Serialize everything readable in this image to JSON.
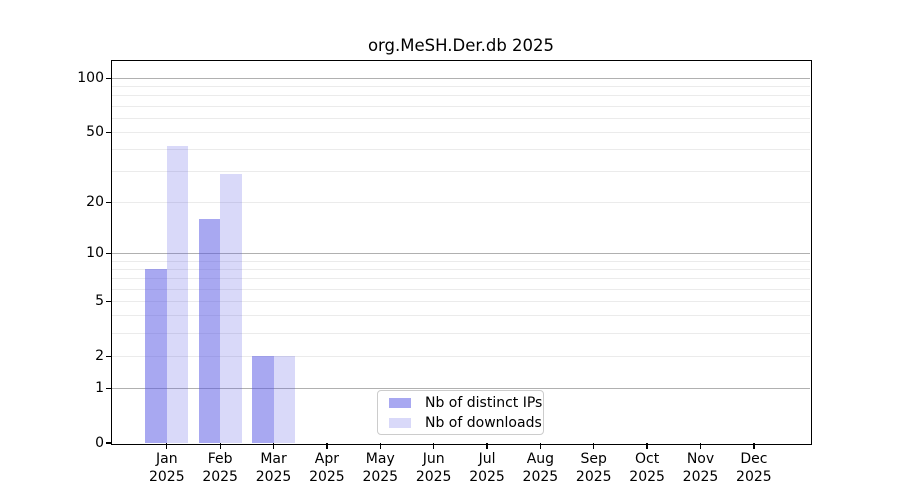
{
  "chart_data": {
    "type": "bar",
    "title": "org.MeSH.Der.db 2025",
    "x_tick_months": [
      "Jan",
      "Feb",
      "Mar",
      "Apr",
      "May",
      "Jun",
      "Jul",
      "Aug",
      "Sep",
      "Oct",
      "Nov",
      "Dec"
    ],
    "x_tick_year": "2025",
    "series": [
      {
        "name": "Nb of distinct IPs",
        "color": "rgba(82,82,228,0.50)",
        "values": [
          8,
          16,
          2,
          0,
          0,
          0,
          0,
          0,
          0,
          0,
          0,
          0
        ]
      },
      {
        "name": "Nb of downloads",
        "color": "rgba(82,82,228,0.22)",
        "values": [
          42,
          29,
          2,
          0,
          0,
          0,
          0,
          0,
          0,
          0,
          0,
          0
        ]
      }
    ],
    "y_scale": "log10(1+x)",
    "ylim": [
      0,
      125
    ],
    "y_tick_labels": [
      100,
      50,
      20,
      10,
      5,
      2,
      1,
      0
    ],
    "y_major_gridlines": [
      1,
      10,
      100
    ],
    "y_minor_gridlines": [
      2,
      3,
      4,
      5,
      6,
      7,
      8,
      9,
      20,
      30,
      40,
      50,
      60,
      70,
      80,
      90
    ],
    "grid_color_major": "#b0b0b0",
    "grid_color_minor": "#ebebeb",
    "legend": {
      "position": "bottom-center"
    }
  }
}
